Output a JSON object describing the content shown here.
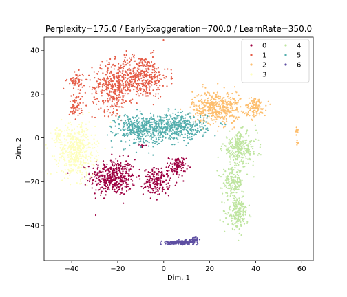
{
  "chart_data": {
    "type": "scatter",
    "title": "Perplexity=175.0 / EarlyExaggeration=700.0 / LearnRate=350.0",
    "xlabel": "Dim. 1",
    "ylabel": "Dim. 2",
    "xlim": [
      -52,
      65
    ],
    "ylim": [
      -56,
      46
    ],
    "xticks": [
      -40,
      -20,
      0,
      20,
      40,
      60
    ],
    "yticks": [
      -40,
      -20,
      0,
      20,
      40
    ],
    "legend_position": "top-right",
    "grid": false,
    "series": [
      {
        "name": "0",
        "color": "#9e0142",
        "clusters": [
          {
            "cx": -22,
            "cy": -18,
            "sx": 6.5,
            "sy": 5.5,
            "n": 430
          },
          {
            "cx": -3,
            "cy": -20,
            "sx": 3.8,
            "sy": 4.0,
            "n": 170
          },
          {
            "cx": 6,
            "cy": -13,
            "sx": 2.5,
            "sy": 3.0,
            "n": 90
          },
          {
            "cx": -9,
            "cy": -4,
            "sx": 1.0,
            "sy": 1.0,
            "n": 8
          }
        ]
      },
      {
        "name": "1",
        "color": "#e55c47",
        "clusters": [
          {
            "cx": -10,
            "cy": 28,
            "sx": 8.0,
            "sy": 6.5,
            "n": 420
          },
          {
            "cx": -22,
            "cy": 23,
            "sx": 6.0,
            "sy": 7.5,
            "n": 330
          },
          {
            "cx": -38,
            "cy": 26,
            "sx": 2.5,
            "sy": 2.5,
            "n": 60
          },
          {
            "cx": -38,
            "cy": 15,
            "sx": 2.0,
            "sy": 4.0,
            "n": 55
          }
        ]
      },
      {
        "name": "2",
        "color": "#fdbe6e",
        "clusters": [
          {
            "cx": 23,
            "cy": 14,
            "sx": 7.0,
            "sy": 5.0,
            "n": 430
          },
          {
            "cx": 40,
            "cy": 14,
            "sx": 3.0,
            "sy": 3.0,
            "n": 110
          },
          {
            "cx": 58,
            "cy": 3,
            "sx": 0.8,
            "sy": 1.0,
            "n": 14
          },
          {
            "cx": 58,
            "cy": -2,
            "sx": 0.5,
            "sy": 1.0,
            "n": 6
          }
        ]
      },
      {
        "name": "3",
        "color": "#feffbe",
        "clusters": [
          {
            "cx": -38,
            "cy": -6,
            "sx": 5.5,
            "sy": 8.0,
            "n": 480
          },
          {
            "cx": -46,
            "cy": 1,
            "sx": 1.5,
            "sy": 2.0,
            "n": 30
          }
        ]
      },
      {
        "name": "4",
        "color": "#bfe5a0",
        "clusters": [
          {
            "cx": 33,
            "cy": -5,
            "sx": 5.0,
            "sy": 5.0,
            "n": 280
          },
          {
            "cx": 30,
            "cy": -20,
            "sx": 3.0,
            "sy": 4.0,
            "n": 150
          },
          {
            "cx": 32,
            "cy": -34,
            "sx": 3.0,
            "sy": 5.0,
            "n": 200
          }
        ]
      },
      {
        "name": "5",
        "color": "#54aead",
        "clusters": [
          {
            "cx": -10,
            "cy": 4,
            "sx": 7.0,
            "sy": 4.5,
            "n": 380
          },
          {
            "cx": 6,
            "cy": 5,
            "sx": 8.5,
            "sy": 4.0,
            "n": 430
          }
        ]
      },
      {
        "name": "6",
        "color": "#5e4fa2",
        "clusters": [
          {
            "cx": 7,
            "cy": -47.8,
            "sx": 4.2,
            "sy": 0.55,
            "n": 230
          },
          {
            "cx": 13,
            "cy": -46.5,
            "sx": 1.5,
            "sy": 0.8,
            "n": 40
          }
        ]
      }
    ]
  }
}
